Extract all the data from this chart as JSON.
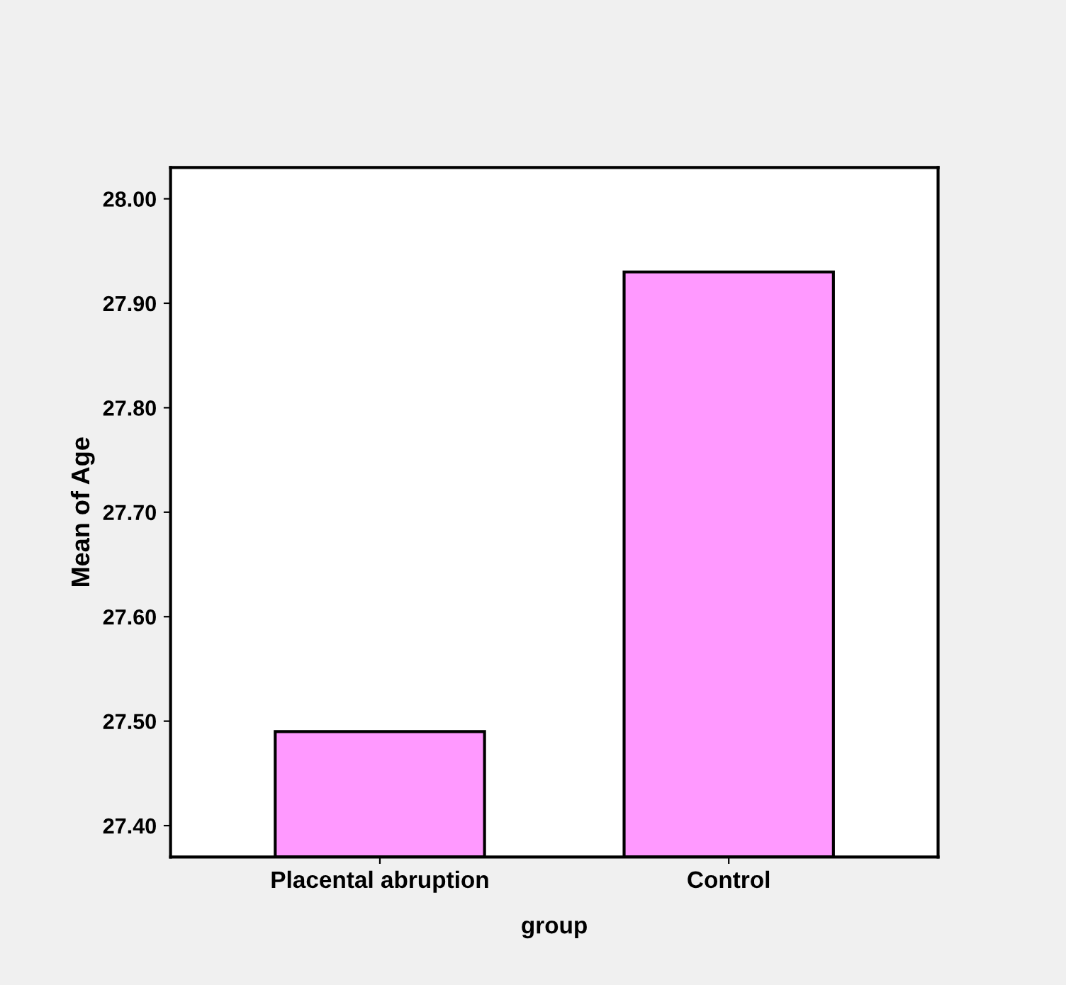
{
  "chart_data": {
    "type": "bar",
    "xlabel": "group",
    "ylabel": "Mean of Age",
    "categories": [
      "Placental abruption",
      "Control"
    ],
    "values": [
      27.49,
      27.93
    ],
    "color": "#ff99ff",
    "ylim": [
      27.37,
      28.03
    ],
    "yticks": [
      {
        "value": 27.4,
        "label": "27.40"
      },
      {
        "value": 27.5,
        "label": "27.50"
      },
      {
        "value": 27.6,
        "label": "27.60"
      },
      {
        "value": 27.7,
        "label": "27.70"
      },
      {
        "value": 27.8,
        "label": "27.80"
      },
      {
        "value": 27.9,
        "label": "27.90"
      },
      {
        "value": 28.0,
        "label": "28.00"
      }
    ],
    "grid": false,
    "legend": false
  }
}
